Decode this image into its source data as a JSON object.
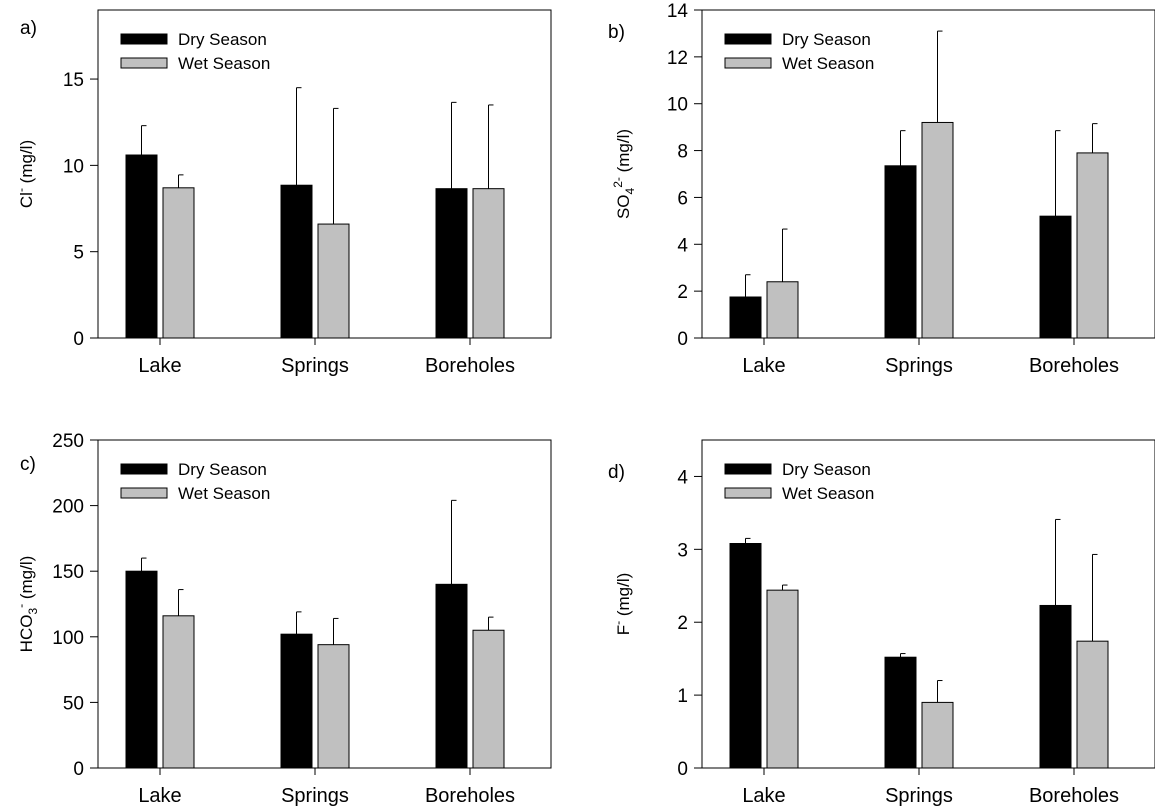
{
  "legend": {
    "dry_label": "Dry Season",
    "wet_label": "Wet Season"
  },
  "colors": {
    "dry": "#000000",
    "wet": "#c0c0c0",
    "error_bar": "#000000"
  },
  "chart_data": [
    {
      "type": "bar",
      "panel_label": "a)",
      "ylabel": {
        "base": "Cl",
        "sup": "-",
        "sub": "",
        "unit": " (mg/l)"
      },
      "categories": [
        "Lake",
        "Springs",
        "Boreholes"
      ],
      "ylim": [
        0,
        19
      ],
      "yticks": [
        0,
        5,
        10,
        15
      ],
      "series": [
        {
          "name": "Dry Season",
          "values": [
            10.6,
            8.85,
            8.65
          ],
          "errors": [
            1.7,
            5.65,
            5.0
          ]
        },
        {
          "name": "Wet Season",
          "values": [
            8.7,
            6.6,
            8.65
          ],
          "errors": [
            0.75,
            6.7,
            4.85
          ]
        }
      ],
      "legend_position": "top-left",
      "grid": false
    },
    {
      "type": "bar",
      "panel_label": "b)",
      "ylabel": {
        "base": "SO",
        "sup": "2-",
        "sub": "4",
        "unit": " (mg/l)"
      },
      "categories": [
        "Lake",
        "Springs",
        "Boreholes"
      ],
      "ylim": [
        0,
        14
      ],
      "yticks": [
        0,
        2,
        4,
        6,
        8,
        10,
        12,
        14
      ],
      "series": [
        {
          "name": "Dry Season",
          "values": [
            1.75,
            7.35,
            5.2
          ],
          "errors": [
            0.95,
            1.5,
            3.65
          ]
        },
        {
          "name": "Wet Season",
          "values": [
            2.4,
            9.2,
            7.9
          ],
          "errors": [
            2.25,
            3.9,
            1.25
          ]
        }
      ],
      "legend_position": "top-left",
      "grid": false
    },
    {
      "type": "bar",
      "panel_label": "c)",
      "ylabel": {
        "base": "HCO",
        "sup": "-",
        "sub": "3",
        "unit": " (mg/l)"
      },
      "categories": [
        "Lake",
        "Springs",
        "Boreholes"
      ],
      "ylim": [
        0,
        250
      ],
      "yticks": [
        0,
        50,
        100,
        150,
        200,
        250
      ],
      "series": [
        {
          "name": "Dry Season",
          "values": [
            150,
            102,
            140
          ],
          "errors": [
            10,
            17,
            64
          ]
        },
        {
          "name": "Wet Season",
          "values": [
            116,
            94,
            105
          ],
          "errors": [
            20,
            20,
            10
          ]
        }
      ],
      "legend_position": "top-left",
      "grid": false
    },
    {
      "type": "bar",
      "panel_label": "d)",
      "ylabel": {
        "base": "F",
        "sup": "-",
        "sub": "",
        "unit": " (mg/l)"
      },
      "categories": [
        "Lake",
        "Springs",
        "Boreholes"
      ],
      "ylim": [
        0,
        4.5
      ],
      "yticks": [
        0,
        1,
        2,
        3,
        4
      ],
      "series": [
        {
          "name": "Dry Season",
          "values": [
            3.08,
            1.52,
            2.23
          ],
          "errors": [
            0.07,
            0.05,
            1.18
          ]
        },
        {
          "name": "Wet Season",
          "values": [
            2.44,
            0.9,
            1.74
          ],
          "errors": [
            0.07,
            0.3,
            1.19
          ]
        }
      ],
      "legend_position": "top-left",
      "grid": false
    }
  ]
}
